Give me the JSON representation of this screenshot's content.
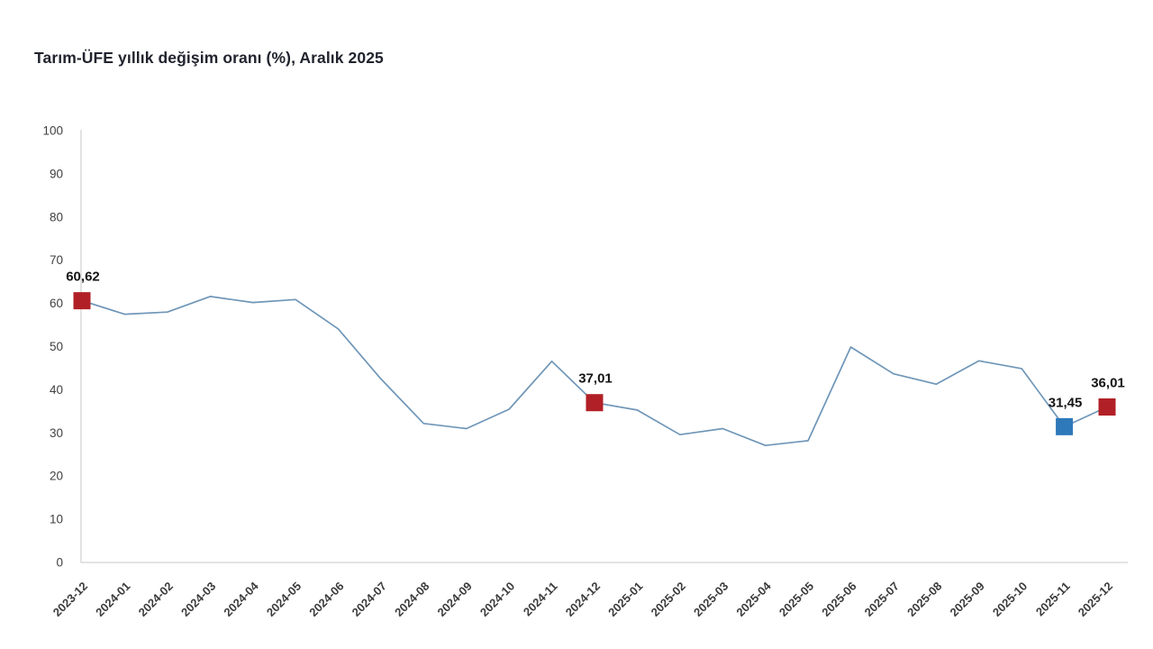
{
  "title": "Tarım-ÜFE yıllık değişim oranı (%), Aralık 2025",
  "chart_data": {
    "type": "line",
    "title": "Tarım-ÜFE yıllık değişim oranı (%), Aralık 2025",
    "xlabel": "",
    "ylabel": "",
    "ylim": [
      0,
      100
    ],
    "ytick_step": 10,
    "grid": false,
    "legend": "none",
    "categories": [
      "2023-12",
      "2024-01",
      "2024-02",
      "2024-03",
      "2024-04",
      "2024-05",
      "2024-06",
      "2024-07",
      "2024-08",
      "2024-09",
      "2024-10",
      "2024-11",
      "2024-12",
      "2025-01",
      "2025-02",
      "2025-03",
      "2025-04",
      "2025-05",
      "2025-06",
      "2025-07",
      "2025-08",
      "2025-09",
      "2025-10",
      "2025-11",
      "2025-12"
    ],
    "series": [
      {
        "name": "Tarım-ÜFE yıllık değişim oranı (%)",
        "values": [
          60.62,
          57.5,
          58.0,
          61.6,
          60.2,
          60.9,
          54.1,
          42.5,
          32.2,
          31.0,
          35.5,
          46.6,
          37.01,
          35.3,
          29.6,
          31.0,
          27.1,
          28.2,
          49.9,
          43.7,
          41.3,
          46.7,
          44.9,
          31.45,
          36.01
        ]
      }
    ],
    "highlighted_points": [
      {
        "index": 0,
        "category": "2023-12",
        "value": 60.62,
        "label": "60,62",
        "marker_color": "#b12026"
      },
      {
        "index": 12,
        "category": "2024-12",
        "value": 37.01,
        "label": "37,01",
        "marker_color": "#b12026"
      },
      {
        "index": 23,
        "category": "2025-11",
        "value": 31.45,
        "label": "31,45",
        "marker_color": "#2e79b9"
      },
      {
        "index": 24,
        "category": "2025-12",
        "value": 36.01,
        "label": "36,01",
        "marker_color": "#b12026"
      }
    ],
    "colors": {
      "line": "#6f96b8",
      "axis": "#d2d2d2",
      "tick_labels": "#404040",
      "data_labels": "#141414",
      "red_marker": "#b12026",
      "blue_marker": "#2e79b9"
    }
  }
}
